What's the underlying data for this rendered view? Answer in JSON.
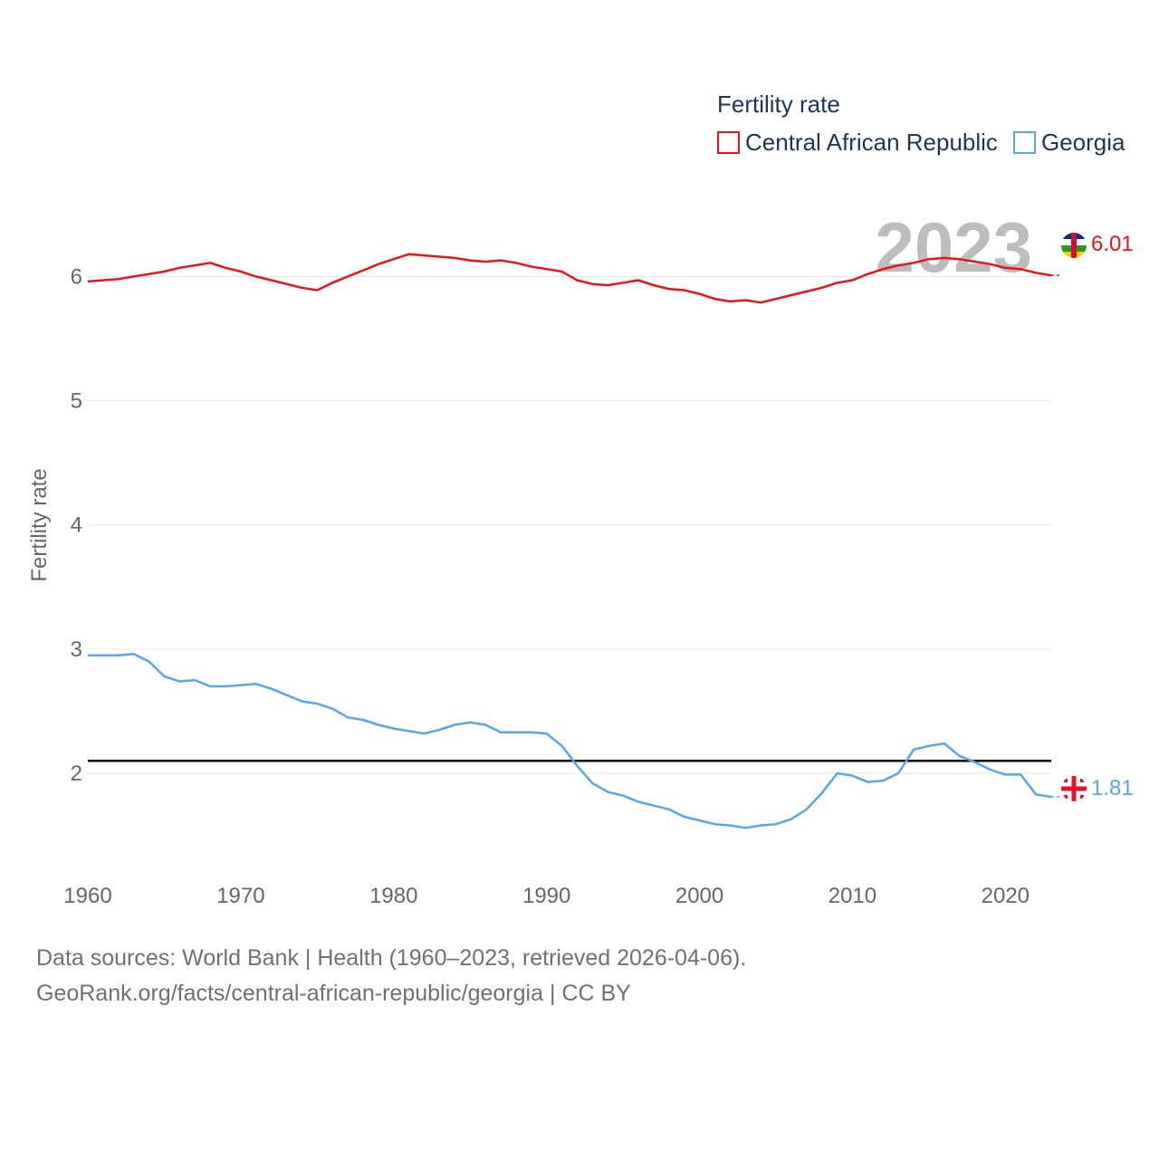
{
  "chart_data": {
    "type": "line",
    "legend_title": "Fertility rate",
    "ylabel": "Fertility rate",
    "xlabel": "",
    "ylim": [
      1.3,
      6.55
    ],
    "xlim": [
      1960,
      2023
    ],
    "y_ticks": [
      2,
      3,
      4,
      5,
      6
    ],
    "x_ticks": [
      1960,
      1970,
      1980,
      1990,
      2000,
      2010,
      2020
    ],
    "year_label": "2023",
    "reference_line": 2.1,
    "legend_position": "top-right",
    "grid": true,
    "x": [
      1960,
      1961,
      1962,
      1963,
      1964,
      1965,
      1966,
      1967,
      1968,
      1969,
      1970,
      1971,
      1972,
      1973,
      1974,
      1975,
      1976,
      1977,
      1978,
      1979,
      1980,
      1981,
      1982,
      1983,
      1984,
      1985,
      1986,
      1987,
      1988,
      1989,
      1990,
      1991,
      1992,
      1993,
      1994,
      1995,
      1996,
      1997,
      1998,
      1999,
      2000,
      2001,
      2002,
      2003,
      2004,
      2005,
      2006,
      2007,
      2008,
      2009,
      2010,
      2011,
      2012,
      2013,
      2014,
      2015,
      2016,
      2017,
      2018,
      2019,
      2020,
      2021,
      2022,
      2023
    ],
    "series": [
      {
        "name": "Central African Republic",
        "color": "#e8141b",
        "end_label": "6.01",
        "values": [
          5.96,
          5.97,
          5.98,
          6.0,
          6.02,
          6.04,
          6.07,
          6.09,
          6.11,
          6.07,
          6.04,
          6.0,
          5.97,
          5.94,
          5.91,
          5.89,
          5.95,
          6.0,
          6.05,
          6.1,
          6.14,
          6.18,
          6.17,
          6.16,
          6.15,
          6.13,
          6.12,
          6.13,
          6.11,
          6.08,
          6.06,
          6.04,
          5.97,
          5.94,
          5.93,
          5.95,
          5.97,
          5.93,
          5.9,
          5.89,
          5.86,
          5.82,
          5.8,
          5.81,
          5.79,
          5.82,
          5.85,
          5.88,
          5.91,
          5.95,
          5.97,
          6.02,
          6.06,
          6.09,
          6.11,
          6.14,
          6.15,
          6.14,
          6.12,
          6.1,
          6.07,
          6.06,
          6.03,
          6.01
        ]
      },
      {
        "name": "Georgia",
        "color": "#5ba4e6",
        "end_label": "1.81",
        "values": [
          2.95,
          2.95,
          2.95,
          2.96,
          2.9,
          2.78,
          2.74,
          2.75,
          2.7,
          2.7,
          2.71,
          2.72,
          2.68,
          2.63,
          2.58,
          2.56,
          2.52,
          2.45,
          2.43,
          2.39,
          2.36,
          2.34,
          2.32,
          2.35,
          2.39,
          2.41,
          2.39,
          2.33,
          2.33,
          2.33,
          2.32,
          2.22,
          2.06,
          1.92,
          1.85,
          1.82,
          1.77,
          1.74,
          1.71,
          1.65,
          1.62,
          1.59,
          1.58,
          1.56,
          1.58,
          1.59,
          1.63,
          1.71,
          1.84,
          2.0,
          1.98,
          1.93,
          1.94,
          2.0,
          2.19,
          2.22,
          2.24,
          2.14,
          2.09,
          2.03,
          1.99,
          1.99,
          1.83,
          1.81
        ]
      }
    ]
  },
  "footer": {
    "line1": "Data sources: World Bank | Health (1960–2023, retrieved 2026-04-06).",
    "line2": "GeoRank.org/facts/central-african-republic/georgia | CC BY"
  }
}
